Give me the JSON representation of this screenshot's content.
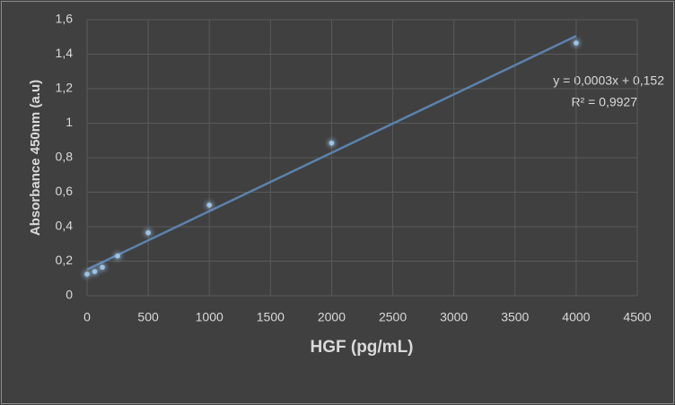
{
  "chart_data": {
    "type": "scatter",
    "xlabel": "HGF (pg/mL)",
    "ylabel": "Absorbance 450nm (a.u)",
    "x": [
      0,
      62.5,
      125,
      250,
      500,
      1000,
      2000,
      4000
    ],
    "values": [
      0.125,
      0.14,
      0.165,
      0.23,
      0.365,
      0.525,
      0.885,
      1.465
    ],
    "color": "#9dc3e6",
    "trendline": {
      "type": "linear",
      "color": "#5b82ad",
      "equation": "y = 0,0003x + 0,152",
      "r_squared": "R² = 0,9927"
    },
    "xlim": [
      0,
      4500
    ],
    "xticks": [
      0,
      500,
      1000,
      1500,
      2000,
      2500,
      3000,
      3500,
      4000,
      4500
    ],
    "ylim": [
      0,
      1.6
    ],
    "yticks": [
      0,
      {
        "value": 0.2,
        "label": "0,2"
      },
      {
        "value": 0.4,
        "label": "0,4"
      },
      {
        "value": 0.6,
        "label": "0,6"
      },
      {
        "value": 0.8,
        "label": "0,8"
      },
      1,
      {
        "value": 1.2,
        "label": "1,2"
      },
      {
        "value": 1.4,
        "label": "1,4"
      },
      {
        "value": 1.6,
        "label": "1,6"
      }
    ],
    "grid": true
  }
}
